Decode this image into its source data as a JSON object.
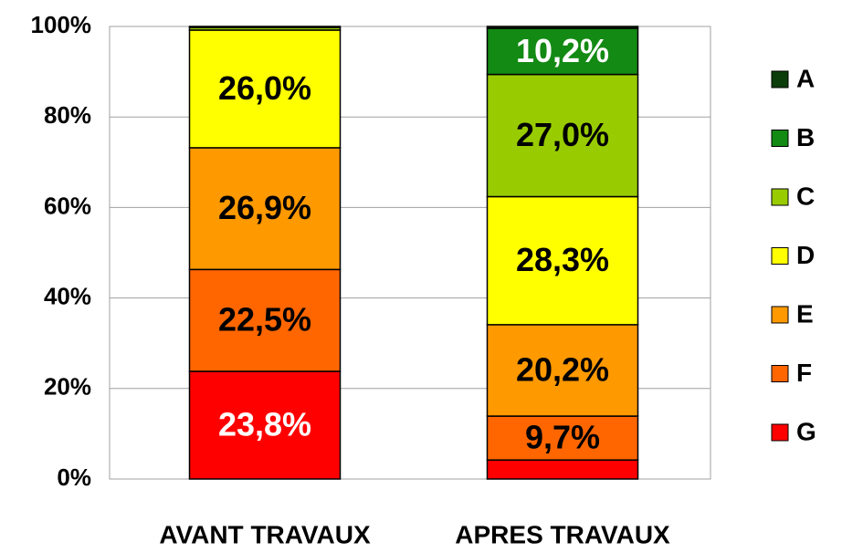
{
  "chart_data": {
    "type": "stacked_bar",
    "categories": [
      "AVANT TRAVAUX",
      "APRES TRAVAUX"
    ],
    "series": [
      {
        "name": "G",
        "color": "#ff0000",
        "label_color": "#ffffff",
        "values": [
          23.8,
          4.2
        ],
        "value_labels": [
          "23,8%",
          null
        ]
      },
      {
        "name": "F",
        "color": "#ff6600",
        "label_color": "#000000",
        "values": [
          22.5,
          9.7
        ],
        "value_labels": [
          "22,5%",
          "9,7%"
        ]
      },
      {
        "name": "E",
        "color": "#ff9900",
        "label_color": "#000000",
        "values": [
          26.9,
          20.2
        ],
        "value_labels": [
          "26,9%",
          "20,2%"
        ]
      },
      {
        "name": "D",
        "color": "#ffff00",
        "label_color": "#000000",
        "values": [
          26.0,
          28.3
        ],
        "value_labels": [
          "26,0%",
          "28,3%"
        ]
      },
      {
        "name": "C",
        "color": "#99cc00",
        "label_color": "#000000",
        "values": [
          0.6,
          27.0
        ],
        "value_labels": [
          null,
          "27,0%"
        ]
      },
      {
        "name": "B",
        "color": "#138a13",
        "label_color": "#ffffff",
        "values": [
          0,
          10.2
        ],
        "value_labels": [
          null,
          "10,2%"
        ]
      },
      {
        "name": "A",
        "color": "#0b3d0b",
        "label_color": "#ffffff",
        "values": [
          0.2,
          0.4
        ],
        "value_labels": [
          null,
          null
        ]
      }
    ],
    "ylim": [
      0,
      100
    ],
    "yticks": [
      {
        "value": 0,
        "label": "0%"
      },
      {
        "value": 20,
        "label": "20%"
      },
      {
        "value": 40,
        "label": "40%"
      },
      {
        "value": 60,
        "label": "60%"
      },
      {
        "value": 80,
        "label": "80%"
      },
      {
        "value": 100,
        "label": "100%"
      }
    ],
    "grid": true,
    "legend": "right"
  }
}
